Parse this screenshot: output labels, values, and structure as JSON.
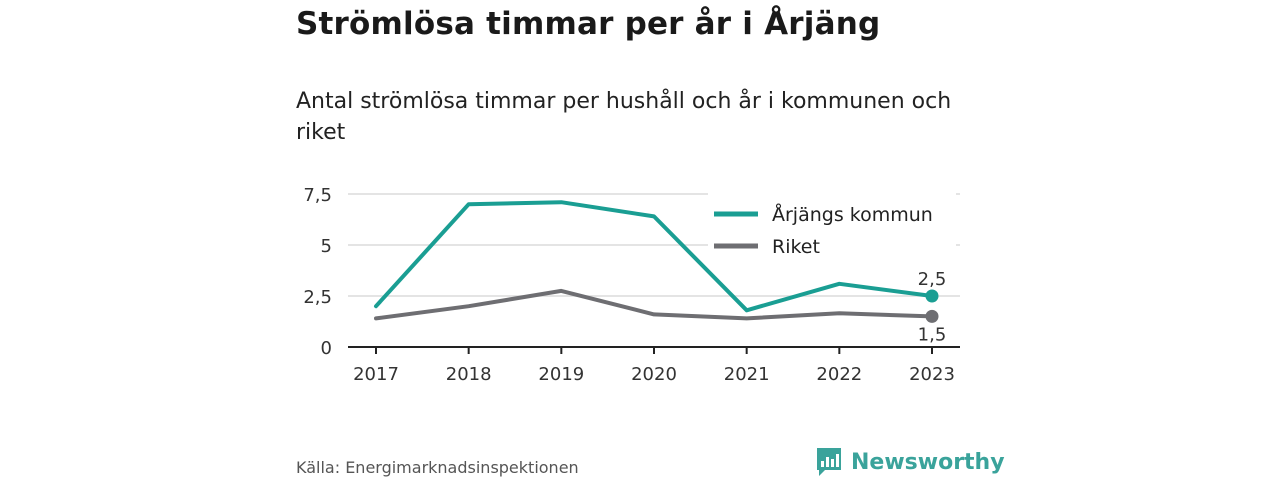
{
  "title": "Strömlösa timmar per år i Årjäng",
  "subtitle": "Antal strömlösa timmar per hushåll och år i kommunen och riket",
  "source": "Källa: Energimarknadsinspektionen",
  "brand": {
    "name": "Newsworthy",
    "icon": "bar-chart-icon",
    "color": "#3aa39b"
  },
  "chart_data": {
    "type": "line",
    "x": [
      "2017",
      "2018",
      "2019",
      "2020",
      "2021",
      "2022",
      "2023"
    ],
    "yticks": [
      0,
      2.5,
      5,
      7.5
    ],
    "ytick_labels": [
      "0",
      "2,5",
      "5",
      "7,5"
    ],
    "ylim": [
      0,
      7.5
    ],
    "grid": true,
    "legend_position": "top-right",
    "series": [
      {
        "name": "Årjängs kommun",
        "color": "#1a9e93",
        "values": [
          2.0,
          7.0,
          7.1,
          6.4,
          1.8,
          3.1,
          2.5
        ],
        "end_label": "2,5"
      },
      {
        "name": "Riket",
        "color": "#6e6e72",
        "values": [
          1.4,
          2.0,
          2.75,
          1.6,
          1.4,
          1.65,
          1.5
        ],
        "end_label": "1,5"
      }
    ]
  }
}
